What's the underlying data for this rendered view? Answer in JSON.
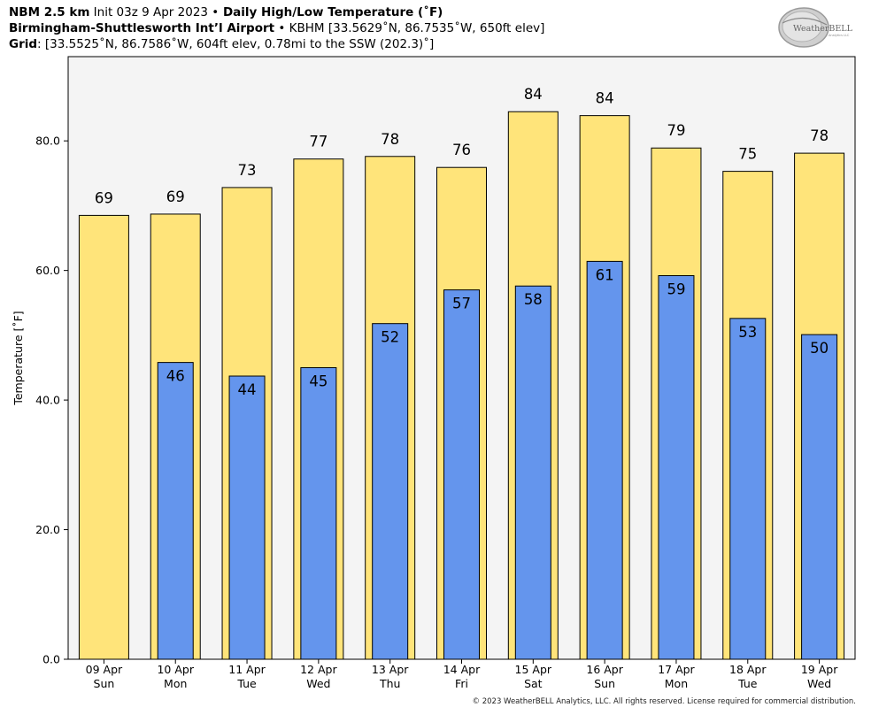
{
  "header": {
    "line1_bold_a": "NBM 2.5 km",
    "line1_mid": " Init 03z 9 Apr 2023 ",
    "line1_bullet": "•",
    "line1_bold_b": " Daily High/Low Temperature (˚F)",
    "line2_bold": "Birmingham-Shuttlesworth Int’l Airport",
    "line2_rest": " • KBHM [33.5629˚N, 86.7535˚W, 650ft elev]",
    "line3_bold": "Grid",
    "line3_rest": ": [33.5525˚N, 86.7586˚W, 604ft elev, 0.78mi to the SSW (202.3)˚]"
  },
  "logo": {
    "text": "WeatherBELL",
    "subtext": "Analytics LLC"
  },
  "copyright": "© 2023 WeatherBELL Analytics, LLC. All rights reserved. License required for commercial distribution.",
  "chart_data": {
    "type": "bar",
    "title": "Daily High/Low Temperature (˚F)",
    "ylabel": "Temperature [˚F]",
    "xlabel": "",
    "ylim": [
      0,
      93
    ],
    "yticks": [
      "0.0",
      "20.0",
      "40.0",
      "60.0",
      "80.0"
    ],
    "ytick_values": [
      0,
      20,
      40,
      60,
      80
    ],
    "categories": [
      {
        "date": "09 Apr",
        "day": "Sun"
      },
      {
        "date": "10 Apr",
        "day": "Mon"
      },
      {
        "date": "11 Apr",
        "day": "Tue"
      },
      {
        "date": "12 Apr",
        "day": "Wed"
      },
      {
        "date": "13 Apr",
        "day": "Thu"
      },
      {
        "date": "14 Apr",
        "day": "Fri"
      },
      {
        "date": "15 Apr",
        "day": "Sat"
      },
      {
        "date": "16 Apr",
        "day": "Sun"
      },
      {
        "date": "17 Apr",
        "day": "Mon"
      },
      {
        "date": "18 Apr",
        "day": "Tue"
      },
      {
        "date": "19 Apr",
        "day": "Wed"
      }
    ],
    "series": [
      {
        "name": "",
        "color": "#ffe47a",
        "values": [
          68.5,
          68.7,
          72.8,
          77.2,
          77.6,
          75.9,
          84.5,
          83.9,
          78.9,
          75.3,
          78.1
        ],
        "labels": [
          "69",
          "69",
          "73",
          "77",
          "78",
          "76",
          "84",
          "84",
          "79",
          "75",
          "78"
        ]
      },
      {
        "name": "",
        "color": "#6495ed",
        "values": [
          null,
          45.8,
          43.7,
          45.0,
          51.8,
          57.0,
          57.6,
          61.4,
          59.2,
          52.6,
          50.1
        ],
        "labels": [
          "",
          "46",
          "44",
          "45",
          "52",
          "57",
          "58",
          "61",
          "59",
          "53",
          "50"
        ]
      }
    ],
    "grid": false,
    "plot_background": "#f4f4f4"
  }
}
